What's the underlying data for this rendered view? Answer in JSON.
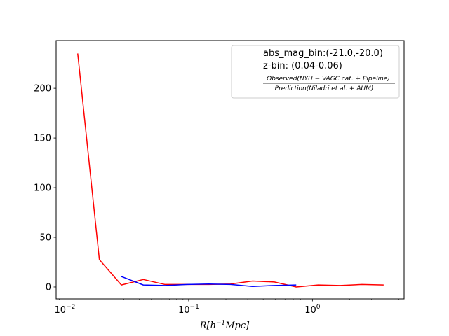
{
  "chart_data": {
    "type": "line",
    "xscale": "log",
    "xlim": [
      0.0085,
      5.5
    ],
    "ylim": [
      -12,
      248
    ],
    "xlabel": "R[h^{-1}Mpc]",
    "ylabel": "",
    "title": "",
    "grid": false,
    "legend_placement": "top-right",
    "legend_lines": [
      "abs_mag_bin:(-21.0,-20.0)",
      "z-bin: (0.04-0.06)"
    ],
    "legend_fraction": {
      "numerator": "Observed(NYU − VAGC cat. + Pipeline)",
      "denominator": "Prediction(Niladri et al. + AUM)"
    },
    "x_ticks": [
      {
        "value": 0.01,
        "base": "10",
        "exp": "−2"
      },
      {
        "value": 0.1,
        "base": "10",
        "exp": "−1"
      },
      {
        "value": 1,
        "base": "10",
        "exp": "0"
      }
    ],
    "y_ticks": [
      0,
      50,
      100,
      150,
      200
    ],
    "series": [
      {
        "color": "#ff0000",
        "x": [
          0.0127,
          0.019,
          0.0286,
          0.043,
          0.0645,
          0.097,
          0.1455,
          0.2185,
          0.3285,
          0.493,
          0.74,
          1.112,
          1.67,
          2.51,
          3.76
        ],
        "y": [
          235,
          27.5,
          2,
          7.5,
          2.5,
          2.5,
          2.5,
          3,
          6,
          5,
          0,
          2,
          1.5,
          2.5,
          2
        ]
      },
      {
        "color": "#0000ff",
        "x": [
          0.0286,
          0.043,
          0.0645,
          0.097,
          0.1455,
          0.2185,
          0.3285,
          0.493,
          0.74
        ],
        "y": [
          10.5,
          2,
          1.5,
          2.5,
          3,
          2.5,
          0.5,
          1.5,
          2
        ]
      }
    ]
  }
}
